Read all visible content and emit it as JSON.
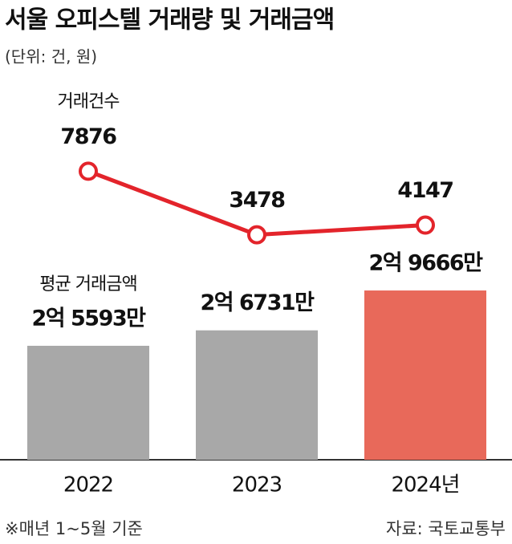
{
  "chart_data": {
    "type": "bar",
    "title": "서울 오피스텔 거래량 및 거래금액",
    "subtitle": "(단위: 건, 원)",
    "categories": [
      "2022",
      "2023",
      "2024년"
    ],
    "series": [
      {
        "name": "평균 거래금액",
        "type": "bar",
        "colors": [
          "#a8a8a8",
          "#a8a8a8",
          "#e8695a"
        ],
        "values": [
          255930000,
          267310000,
          296660000
        ],
        "value_labels": [
          "2억 5593만",
          "2억 6731만",
          "2억 9666만"
        ]
      },
      {
        "name": "거래건수",
        "type": "line",
        "axis": "y2",
        "color": "#e3242b",
        "values": [
          7876,
          3478,
          4147
        ]
      }
    ],
    "ylim": [
      172000000,
      302000000
    ],
    "y2lim": [
      1400,
      11400
    ],
    "note": "※매년 1~5월 기준",
    "source": "자료: 국토교통부"
  }
}
